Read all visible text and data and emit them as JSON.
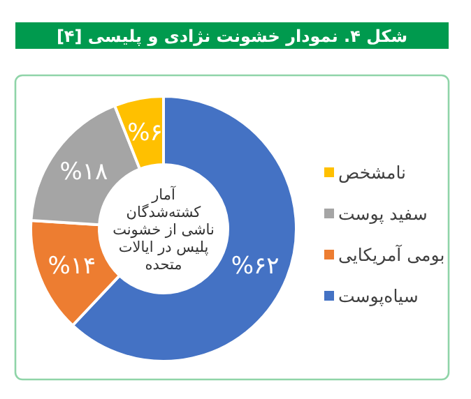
{
  "chart_data": {
    "type": "donut",
    "title": "شکل ۴. نمودار خشونت نژادی و پلیسی [۴]",
    "categories": [
      "سیاه‌پوست",
      "بومی آمریکایی",
      "سفید پوست",
      "نامشخص"
    ],
    "values": [
      62,
      14,
      18,
      6
    ],
    "colors": [
      "#4472c4",
      "#ed7d31",
      "#a5a5a5",
      "#ffc000"
    ],
    "value_labels": [
      "%۶۲",
      "%۱۴",
      "%۱۸",
      "%۶"
    ],
    "annotations": [
      "آمار\nکشته‌شدگان\nناشی از خشونت\nپلیس در ایالات\nمتحده"
    ],
    "legend": "right"
  }
}
